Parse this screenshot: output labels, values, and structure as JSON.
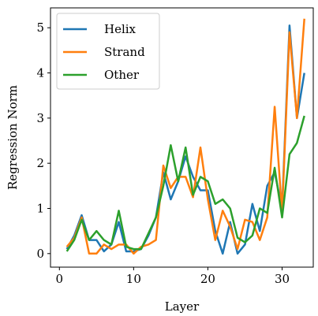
{
  "chart_data": {
    "type": "line",
    "x_label": "Layer",
    "y_label": "Regression Norm",
    "x": [
      1,
      2,
      3,
      4,
      5,
      6,
      7,
      8,
      9,
      10,
      11,
      12,
      13,
      14,
      15,
      16,
      17,
      18,
      19,
      20,
      21,
      22,
      23,
      24,
      25,
      26,
      27,
      28,
      29,
      30,
      31,
      32,
      33
    ],
    "series": [
      {
        "name": "Helix",
        "color": "#1f77b4",
        "values": [
          0.1,
          0.4,
          0.85,
          0.3,
          0.3,
          0.05,
          0.2,
          0.7,
          0.05,
          0.05,
          0.1,
          0.4,
          0.8,
          1.8,
          1.2,
          1.6,
          2.15,
          1.7,
          1.4,
          1.4,
          0.5,
          0.0,
          0.7,
          0.0,
          0.2,
          1.1,
          0.5,
          1.5,
          1.8,
          1.0,
          5.05,
          3.0,
          4.0
        ]
      },
      {
        "name": "Strand",
        "color": "#ff7f0e",
        "values": [
          0.15,
          0.35,
          0.8,
          0.0,
          0.0,
          0.2,
          0.1,
          0.2,
          0.2,
          0.0,
          0.15,
          0.2,
          0.3,
          1.95,
          1.45,
          1.7,
          1.7,
          1.25,
          2.35,
          1.2,
          0.3,
          0.95,
          0.6,
          0.1,
          0.75,
          0.7,
          0.3,
          0.8,
          3.25,
          0.9,
          4.9,
          3.0,
          5.2
        ]
      },
      {
        "name": "Other",
        "color": "#2ca02c",
        "values": [
          0.05,
          0.3,
          0.75,
          0.3,
          0.5,
          0.3,
          0.2,
          0.95,
          0.15,
          0.1,
          0.1,
          0.45,
          0.8,
          1.5,
          2.4,
          1.6,
          2.35,
          1.3,
          1.7,
          1.6,
          1.1,
          1.2,
          1.0,
          0.35,
          0.25,
          0.4,
          1.0,
          0.9,
          1.9,
          0.8,
          2.2,
          2.45,
          3.05
        ]
      }
    ],
    "xlim": [
      -1.2,
      34.2
    ],
    "xticks": [
      0,
      10,
      20,
      30
    ],
    "ylim": [
      -0.3,
      5.44
    ],
    "yticks": [
      0,
      1,
      2,
      3,
      4,
      5
    ],
    "legend": "upper left",
    "grid": false
  }
}
